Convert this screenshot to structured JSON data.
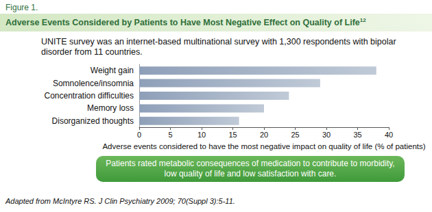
{
  "header": {
    "figure_label": "Figure 1.",
    "title": "Adverse Events Considered by Patients to Have Most Negative Effect on Quality of Life",
    "title_ref": "12"
  },
  "subtitle": "UNITE survey was an internet-based multinational survey with 1,300 respondents with bipolar disorder from 11 countries.",
  "chart_data": {
    "type": "bar",
    "orientation": "horizontal",
    "categories": [
      "Weight gain",
      "Somnolence/insomnia",
      "Concentration difficulties",
      "Memory loss",
      "Disorganized thoughts"
    ],
    "values": [
      38,
      29,
      24,
      20,
      16
    ],
    "color": "#8e9fb8",
    "xlim": [
      0,
      40
    ],
    "xticks": [
      0,
      5,
      10,
      15,
      20,
      25,
      30,
      35,
      40
    ],
    "xlabel": "Adverse events considered to have the most negative impact on quality of life (% of patients)",
    "grid": false
  },
  "annotation": "Patients rated metabolic consequences of medication to contribute to morbidity, low quality of life and low satisfaction with care.",
  "source": "Adapted from McIntyre RS. J Clin Psychiatry 2009; 70(Suppl 3):5-11."
}
